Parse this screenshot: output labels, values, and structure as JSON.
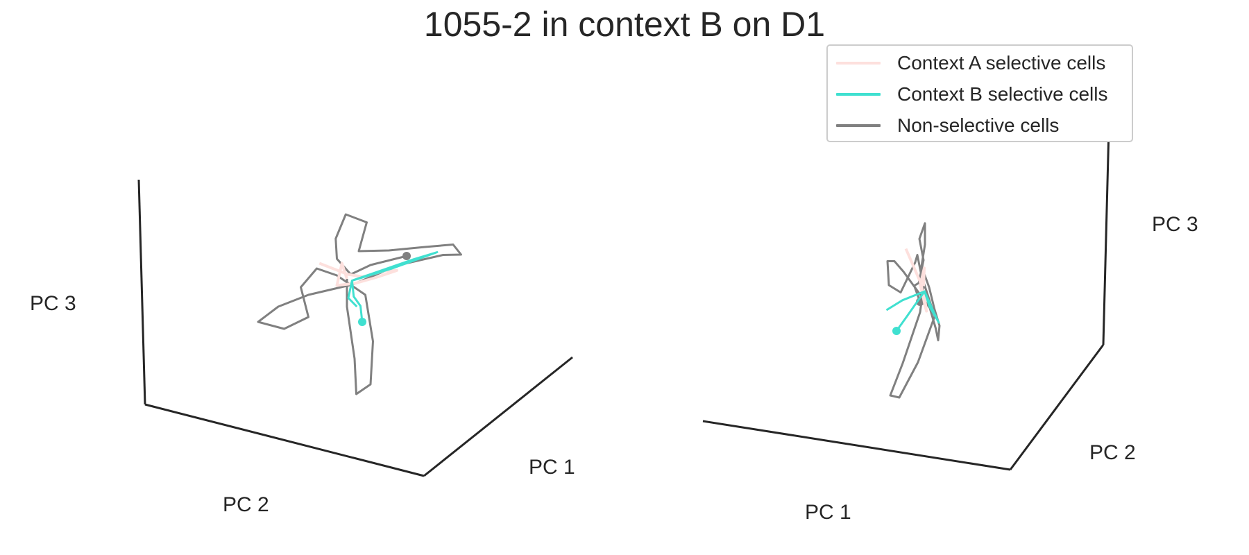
{
  "figure": {
    "title": "1055-2 in context B on D1"
  },
  "colors": {
    "context_a": "#fde0dd",
    "context_b": "#40e0d0",
    "non_selective": "#808080",
    "axis": "#262626"
  },
  "legend": {
    "placement": "upper-right",
    "items": [
      {
        "label": "Context A selective cells",
        "color_key": "context_a"
      },
      {
        "label": "Context B selective cells",
        "color_key": "context_b"
      },
      {
        "label": "Non-selective cells",
        "color_key": "non_selective"
      }
    ]
  },
  "chart_data": [
    {
      "type": "line",
      "projection": "3d",
      "axis_labels": {
        "x": "PC 1",
        "y": "PC 2",
        "z": "PC 3"
      },
      "grid": false,
      "series": [
        {
          "name": "Context A selective cells",
          "color_key": "context_a",
          "points": [
            [
              -0.15,
              0.45,
              0.55
            ],
            [
              0.05,
              0.05,
              0.2
            ],
            [
              0.2,
              -0.1,
              0.1
            ],
            [
              0.45,
              -0.25,
              0.15
            ],
            [
              0.6,
              -0.35,
              0.12
            ],
            [
              0.35,
              -0.2,
              0.05
            ],
            [
              0.1,
              -0.05,
              0.0
            ],
            [
              -0.1,
              0.1,
              0.02
            ],
            [
              -0.05,
              0.05,
              0.4
            ],
            [
              0.0,
              0.0,
              0.1
            ]
          ],
          "start_marker": false
        },
        {
          "name": "Context B selective cells",
          "color_key": "context_b",
          "points": [
            [
              0.4,
              0.2,
              -0.6
            ],
            [
              0.3,
              0.1,
              -0.35
            ],
            [
              0.15,
              0.05,
              -0.2
            ],
            [
              0.05,
              -0.05,
              0.05
            ],
            [
              0.4,
              -0.3,
              0.15
            ],
            [
              0.75,
              -0.55,
              0.25
            ],
            [
              1.0,
              -0.75,
              0.3
            ],
            [
              0.5,
              -0.35,
              0.15
            ],
            [
              0.05,
              -0.05,
              0.05
            ],
            [
              0.2,
              0.25,
              -0.15
            ],
            [
              0.45,
              0.4,
              -0.25
            ]
          ],
          "start_marker": true
        },
        {
          "name": "Non-selective cells",
          "color_key": "non_selective",
          "points": [
            [
              0.8,
              -0.3,
              0.4
            ],
            [
              0.4,
              0.0,
              0.35
            ],
            [
              0.1,
              0.05,
              0.2
            ],
            [
              -0.1,
              0.1,
              0.5
            ],
            [
              -0.05,
              0.2,
              0.9
            ],
            [
              0.05,
              0.1,
              1.3
            ],
            [
              0.3,
              -0.05,
              1.1
            ],
            [
              0.2,
              0.0,
              0.6
            ],
            [
              0.5,
              -0.3,
              0.5
            ],
            [
              0.9,
              -0.6,
              0.45
            ],
            [
              1.2,
              -0.85,
              0.4
            ],
            [
              1.3,
              -0.9,
              0.2
            ],
            [
              1.1,
              -0.75,
              0.25
            ],
            [
              0.6,
              -0.4,
              0.2
            ],
            [
              0.1,
              0.0,
              0.0
            ],
            [
              -0.3,
              0.5,
              0.0
            ],
            [
              -0.6,
              0.8,
              -0.1
            ],
            [
              -0.8,
              1.0,
              -0.3
            ],
            [
              -0.5,
              0.8,
              -0.5
            ],
            [
              -0.3,
              0.5,
              -0.4
            ],
            [
              -0.5,
              0.4,
              0.1
            ],
            [
              -0.3,
              0.3,
              0.4
            ],
            [
              -0.1,
              0.1,
              0.2
            ],
            [
              0.1,
              -0.3,
              -0.3
            ],
            [
              0.3,
              -0.2,
              -1.1
            ],
            [
              0.4,
              0.0,
              -1.8
            ],
            [
              0.3,
              0.2,
              -1.9
            ],
            [
              0.2,
              0.1,
              -1.3
            ],
            [
              0.0,
              0.0,
              -0.4
            ],
            [
              0.0,
              0.0,
              0.1
            ]
          ],
          "start_marker": true
        }
      ]
    },
    {
      "type": "line",
      "projection": "3d",
      "axis_labels": {
        "x": "PC 1",
        "y": "PC 2",
        "z": "PC 3"
      },
      "grid": false,
      "series_ref": "same trajectories as first panel, different viewing angle"
    }
  ]
}
